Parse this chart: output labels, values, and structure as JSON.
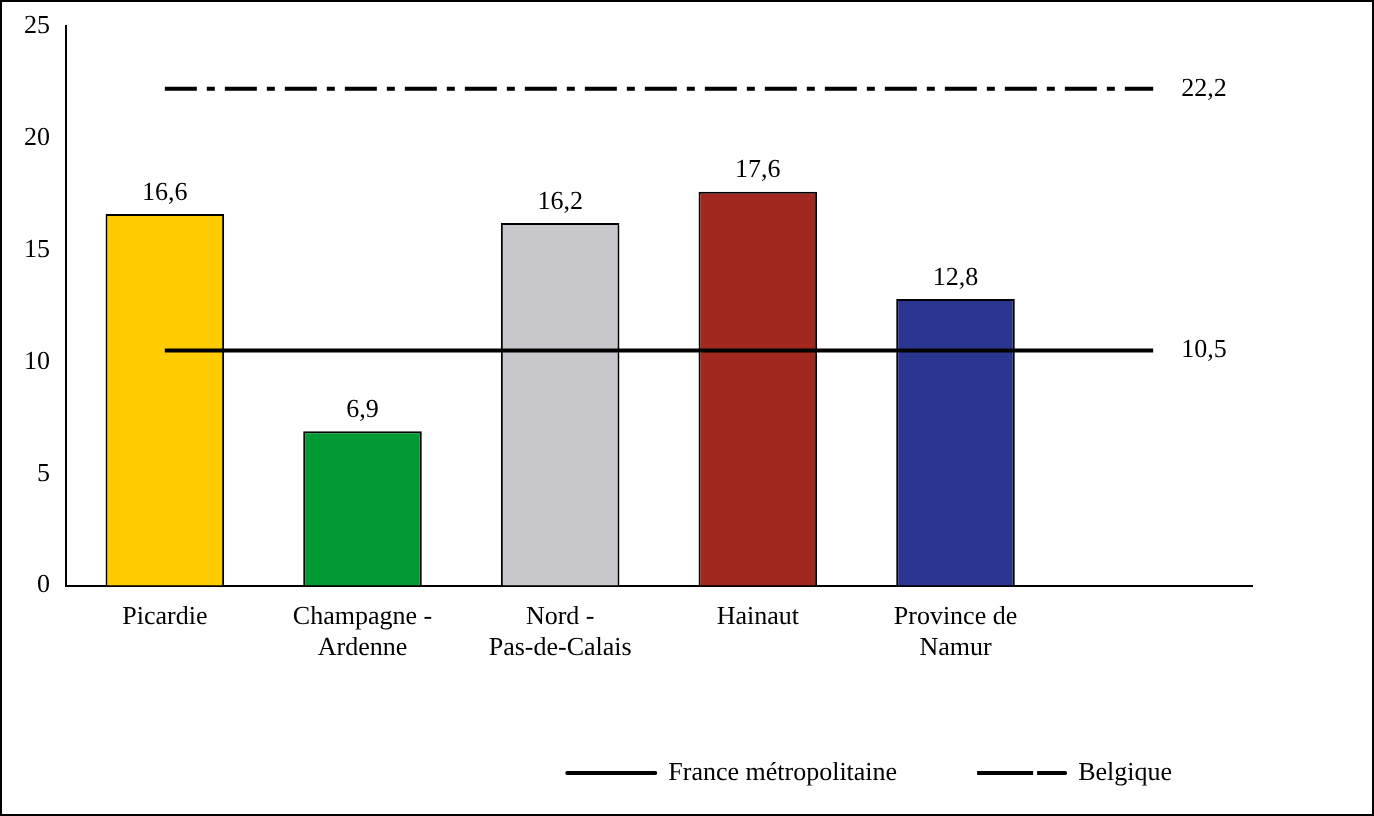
{
  "chart_data": {
    "type": "bar",
    "categories": [
      "Picardie",
      "Champagne - Ardenne",
      "Nord - Pas-de-Calais",
      "Hainaut",
      "Province de Namur",
      null
    ],
    "series": [
      {
        "colors": [
          "#ffcc00",
          "#009933",
          "#c8c8cc",
          "#a0281e",
          "#2a3590",
          null
        ],
        "values": [
          16.6,
          6.9,
          16.2,
          17.6,
          12.8,
          null
        ],
        "value_labels": [
          "16,6",
          "6,9",
          "16,2",
          "17,6",
          "12,8",
          null
        ]
      },
      {
        "type": "line",
        "name": "France métropolitaine",
        "color": "#000000",
        "line_style": "solid",
        "values": [
          10.5,
          10.5,
          10.5,
          10.5,
          10.5,
          10.5
        ],
        "value_labels": [
          null,
          null,
          null,
          null,
          null,
          "10,5"
        ]
      },
      {
        "type": "line",
        "name": "Belgique",
        "color": "#000000",
        "line_style": "dashed",
        "values": [
          22.2,
          22.2,
          22.2,
          22.2,
          22.2,
          22.2
        ],
        "value_labels": [
          null,
          null,
          null,
          null,
          null,
          "22,2"
        ]
      }
    ],
    "ylim": [
      0,
      25
    ],
    "yticks": [
      0,
      5,
      10,
      15,
      20,
      25
    ],
    "grid": false,
    "legend": "bottom right",
    "marker": "none"
  }
}
